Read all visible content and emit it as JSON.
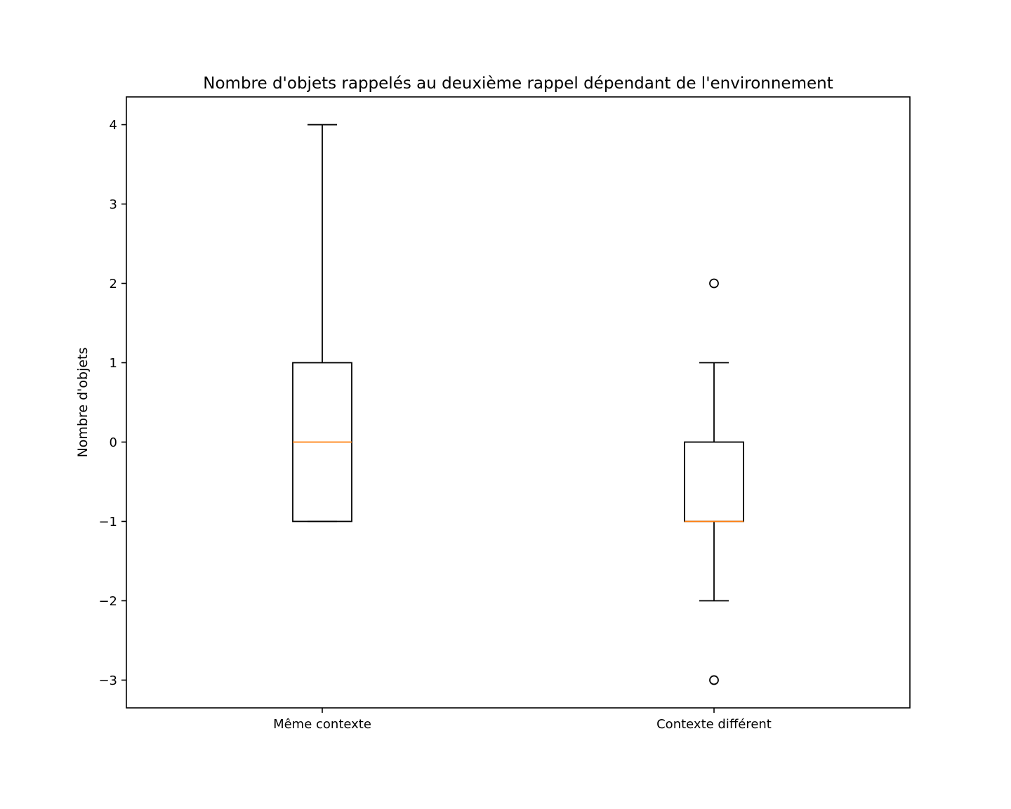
{
  "chart_data": {
    "type": "box",
    "title": "Nombre d'objets rappelés au deuxième rappel dépendant de l'environnement",
    "xlabel": "",
    "ylabel": "Nombre d'objets",
    "ylim": [
      -3.35,
      4.35
    ],
    "yticks": [
      {
        "value": -3,
        "label": "−3"
      },
      {
        "value": -2,
        "label": "−2"
      },
      {
        "value": -1,
        "label": "−1"
      },
      {
        "value": 0,
        "label": "0"
      },
      {
        "value": 1,
        "label": "1"
      },
      {
        "value": 2,
        "label": "2"
      },
      {
        "value": 3,
        "label": "3"
      },
      {
        "value": 4,
        "label": "4"
      }
    ],
    "grid": false,
    "categories": [
      "Même contexte",
      "Contexte différent"
    ],
    "boxes": [
      {
        "category": "Même contexte",
        "whisker_low": -1,
        "q1": -1,
        "median": 0,
        "q3": 1,
        "whisker_high": 4,
        "outliers": []
      },
      {
        "category": "Contexte différent",
        "whisker_low": -2,
        "q1": -1,
        "median": -1,
        "q3": 0,
        "whisker_high": 1,
        "outliers": [
          2,
          -3
        ]
      }
    ],
    "colors": {
      "box": "#000000",
      "median": "#ff7f0e",
      "axes": "#000000"
    }
  }
}
